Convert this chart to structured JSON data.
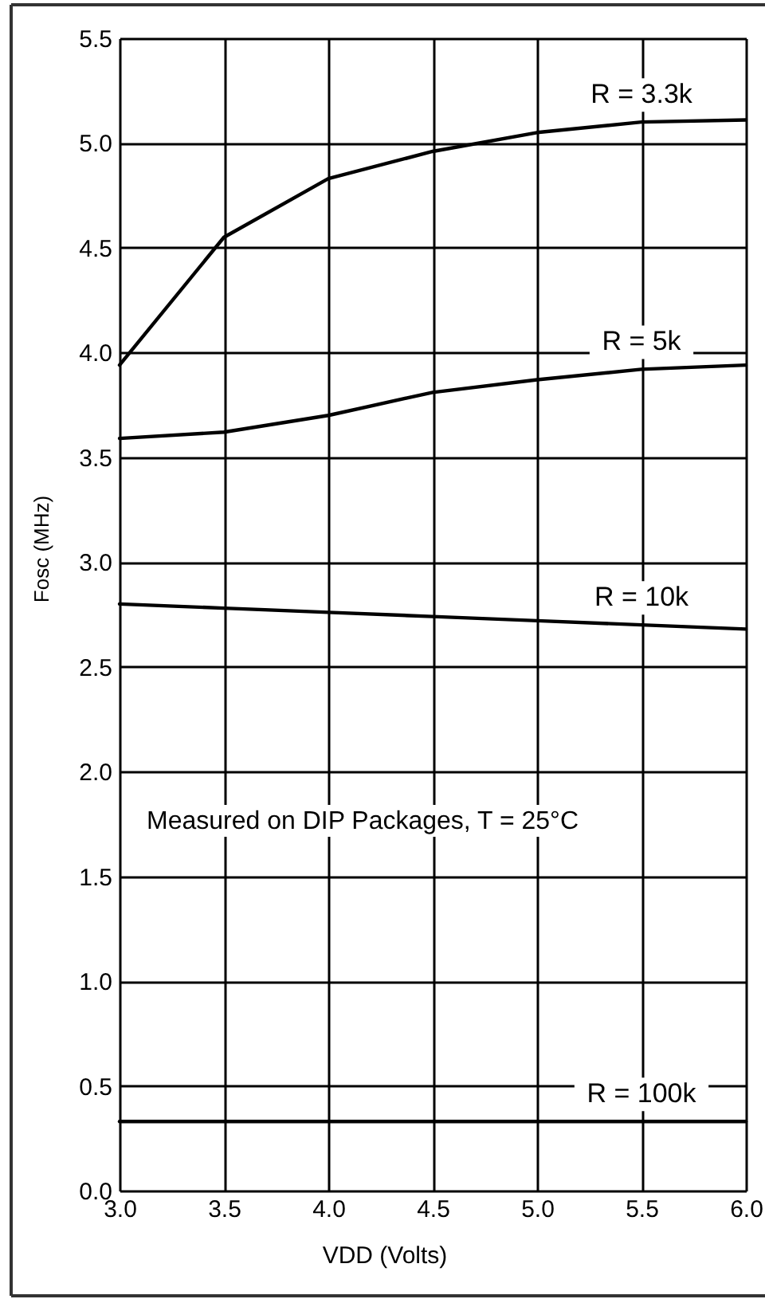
{
  "chart_data": {
    "type": "line",
    "xlabel": "VDD (Volts)",
    "ylabel": "Fosc (MHz)",
    "x": [
      3.0,
      3.5,
      4.0,
      4.5,
      5.0,
      5.5,
      6.0
    ],
    "series": [
      {
        "name": "R = 3.3k",
        "color": "#000000",
        "values": [
          3.94,
          4.55,
          4.83,
          4.96,
          5.05,
          5.1,
          5.11
        ]
      },
      {
        "name": "R = 5k",
        "color": "#000000",
        "values": [
          3.59,
          3.62,
          3.7,
          3.81,
          3.87,
          3.92,
          3.94
        ]
      },
      {
        "name": "R = 10k",
        "color": "#000000",
        "values": [
          2.8,
          2.78,
          2.76,
          2.74,
          2.72,
          2.7,
          2.68
        ]
      },
      {
        "name": "R = 100k",
        "color": "#000000",
        "values": [
          0.33,
          0.33,
          0.33,
          0.33,
          0.33,
          0.33,
          0.33
        ]
      }
    ],
    "xlim": [
      3,
      6
    ],
    "ylim": [
      0,
      5.5
    ],
    "xticks": [
      {
        "value": 3,
        "label": "3.0"
      },
      {
        "value": 3.5,
        "label": "3.5"
      },
      {
        "value": 4,
        "label": "4.0"
      },
      {
        "value": 4.5,
        "label": "4.5"
      },
      {
        "value": 5,
        "label": "5.0"
      },
      {
        "value": 5.5,
        "label": "5.5"
      },
      {
        "value": 6,
        "label": "6.0"
      }
    ],
    "yticks": [
      {
        "value": 0,
        "label": "0.0"
      },
      {
        "value": 0.5,
        "label": "0.5"
      },
      {
        "value": 1,
        "label": "1.0"
      },
      {
        "value": 1.5,
        "label": "1.5"
      },
      {
        "value": 2,
        "label": "2.0"
      },
      {
        "value": 2.5,
        "label": "2.5"
      },
      {
        "value": 3,
        "label": "3.0"
      },
      {
        "value": 3.5,
        "label": "3.5"
      },
      {
        "value": 4,
        "label": "4.0"
      },
      {
        "value": 4.5,
        "label": "4.5"
      },
      {
        "value": 5,
        "label": "5.0"
      },
      {
        "value": 5.5,
        "label": "5.5"
      }
    ],
    "grid": true,
    "legend": false,
    "marker": "none",
    "line_style": "solid",
    "annotations": [
      "Measured on DIP Packages, T = 25°C"
    ]
  }
}
